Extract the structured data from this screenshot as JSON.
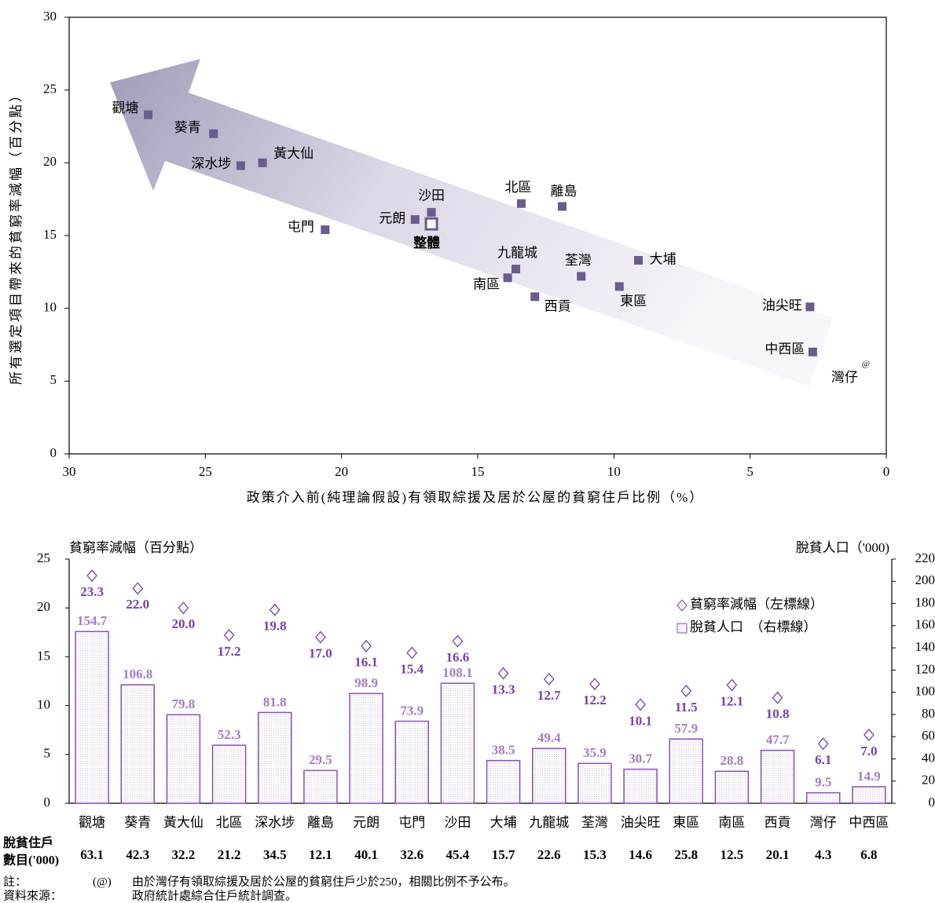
{
  "chart_data": [
    {
      "type": "scatter",
      "xlabel": "政策介入前(純理論假設)有領取綜援及居於公屋的貧窮住戶比例（%）",
      "ylabel": "所有選定項目帶來的貧窮率減幅（百分點）",
      "labels": [
        "觀塘",
        "葵青",
        "深水埗",
        "黃大仙",
        "屯門",
        "元朗",
        "沙田",
        "北區",
        "離島",
        "九龍城",
        "南區",
        "西貢",
        "荃灣",
        "東區",
        "大埔",
        "油尖旺",
        "中西區"
      ],
      "x": [
        27.1,
        24.7,
        23.7,
        22.9,
        20.6,
        17.3,
        16.7,
        13.4,
        11.9,
        13.6,
        13.9,
        12.9,
        11.2,
        9.8,
        9.1,
        2.8,
        2.7
      ],
      "values": [
        23.3,
        22.0,
        19.8,
        20.0,
        15.4,
        16.1,
        16.6,
        17.2,
        17.0,
        12.7,
        12.1,
        10.8,
        12.2,
        11.5,
        13.3,
        10.1,
        7.0
      ],
      "color": "#6b5b8e",
      "overall": {
        "label": "整體",
        "x": 16.7,
        "value": 15.8
      },
      "annotation": "灣仔",
      "annotation_mark": "@",
      "xlim": [
        30,
        0
      ],
      "xticks": [
        30,
        25,
        20,
        15,
        10,
        5,
        0
      ],
      "ylim": [
        0,
        30
      ],
      "yticks": [
        0,
        5,
        10,
        15,
        20,
        25,
        30
      ]
    },
    {
      "type": "combo",
      "ylabel": "貧窮率減幅（百分點）",
      "y2label": "脫貧人口（'000)",
      "categories": [
        "觀塘",
        "葵青",
        "黃大仙",
        "北區",
        "深水埗",
        "離島",
        "元朗",
        "屯門",
        "沙田",
        "大埔",
        "九龍城",
        "荃灣",
        "油尖旺",
        "東區",
        "南區",
        "西貢",
        "灣仔",
        "中西區"
      ],
      "series": [
        {
          "name": "貧窮率減幅（左標線）",
          "mark": "diamond",
          "color": "#7a3fa8",
          "values": [
            23.3,
            22.0,
            20.0,
            17.2,
            19.8,
            17.0,
            16.1,
            15.4,
            16.6,
            13.3,
            12.7,
            12.2,
            10.1,
            11.5,
            12.1,
            10.8,
            6.1,
            7.0
          ],
          "value_labels": [
            "23.3",
            "22.0",
            "20.0",
            "17.2",
            "19.8",
            "17.0",
            "16.1",
            "15.4",
            "16.6",
            "13.3",
            "12.7",
            "12.2",
            "10.1",
            "11.5",
            "12.1",
            "10.8",
            "6.1",
            "7.0"
          ]
        },
        {
          "name": "脫貧人口　（右標線）",
          "mark": "bar",
          "axis": "y2",
          "color": "#8a4fb8",
          "values": [
            154.7,
            106.8,
            79.8,
            52.3,
            81.8,
            29.5,
            98.9,
            73.9,
            108.1,
            38.5,
            49.4,
            35.9,
            30.7,
            57.9,
            28.8,
            47.7,
            9.5,
            14.9
          ]
        }
      ],
      "ylim": [
        0,
        25
      ],
      "yticks": [
        0,
        5,
        10,
        15,
        20,
        25
      ],
      "y2lim": [
        0,
        220
      ],
      "y2ticks": [
        0,
        20,
        40,
        60,
        80,
        100,
        120,
        140,
        160,
        180,
        200,
        220
      ]
    }
  ],
  "households": {
    "label": [
      "脫貧住戶",
      "數目('000)"
    ],
    "values": [
      63.1,
      42.3,
      32.2,
      21.2,
      34.5,
      12.1,
      40.1,
      32.6,
      45.4,
      15.7,
      22.6,
      15.3,
      14.6,
      25.8,
      12.5,
      20.1,
      4.3,
      6.8
    ]
  },
  "notes": {
    "note_label": "註：",
    "note_mark": "(@)",
    "note_text": "由於灣仔有領取綜援及居於公屋的貧窮住戶少於250，相關比例不予公布。",
    "source_label": "資料來源：",
    "source_text": "政府統計處綜合住戶統計調查。"
  }
}
